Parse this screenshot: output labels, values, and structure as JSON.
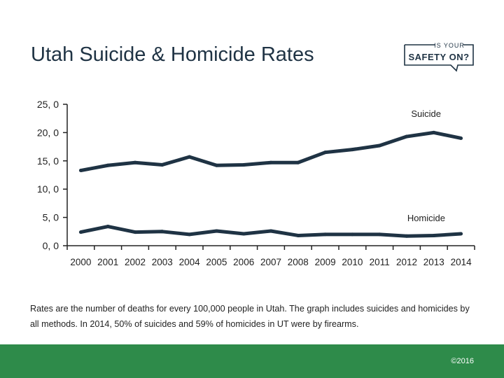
{
  "page": {
    "title": "Utah Suicide & Homicide Rates",
    "caption": "Rates are the number of deaths for every 100,000 people in Utah. The graph includes suicides and homicides by all methods. In 2014, 50% of suicides and 59% of homicides in UT were by firearms.",
    "copyright": "©2016"
  },
  "logo": {
    "line1": "IS YOUR",
    "line2": "SAFETY ON?",
    "color": "#1f3344"
  },
  "chart_data": {
    "type": "line",
    "title": "",
    "xlabel": "",
    "ylabel": "",
    "x": [
      "2000",
      "2001",
      "2002",
      "2003",
      "2004",
      "2005",
      "2006",
      "2007",
      "2008",
      "2009",
      "2010",
      "2011",
      "2012",
      "2013",
      "2014"
    ],
    "y_ticks": [
      "0, 0",
      "5, 0",
      "10, 0",
      "15, 0",
      "20, 0",
      "25, 0"
    ],
    "ylim": [
      0,
      25
    ],
    "grid": false,
    "series": [
      {
        "name": "Suicide",
        "values": [
          13.3,
          14.2,
          14.7,
          14.3,
          15.7,
          14.2,
          14.3,
          14.7,
          14.7,
          16.5,
          17.0,
          17.7,
          19.3,
          20.0,
          19.0
        ],
        "color": "#1f3344"
      },
      {
        "name": "Homicide",
        "values": [
          2.4,
          3.4,
          2.4,
          2.5,
          2.0,
          2.6,
          2.1,
          2.6,
          1.8,
          2.0,
          2.0,
          2.0,
          1.7,
          1.8,
          2.1
        ],
        "color": "#1f3344"
      }
    ]
  }
}
